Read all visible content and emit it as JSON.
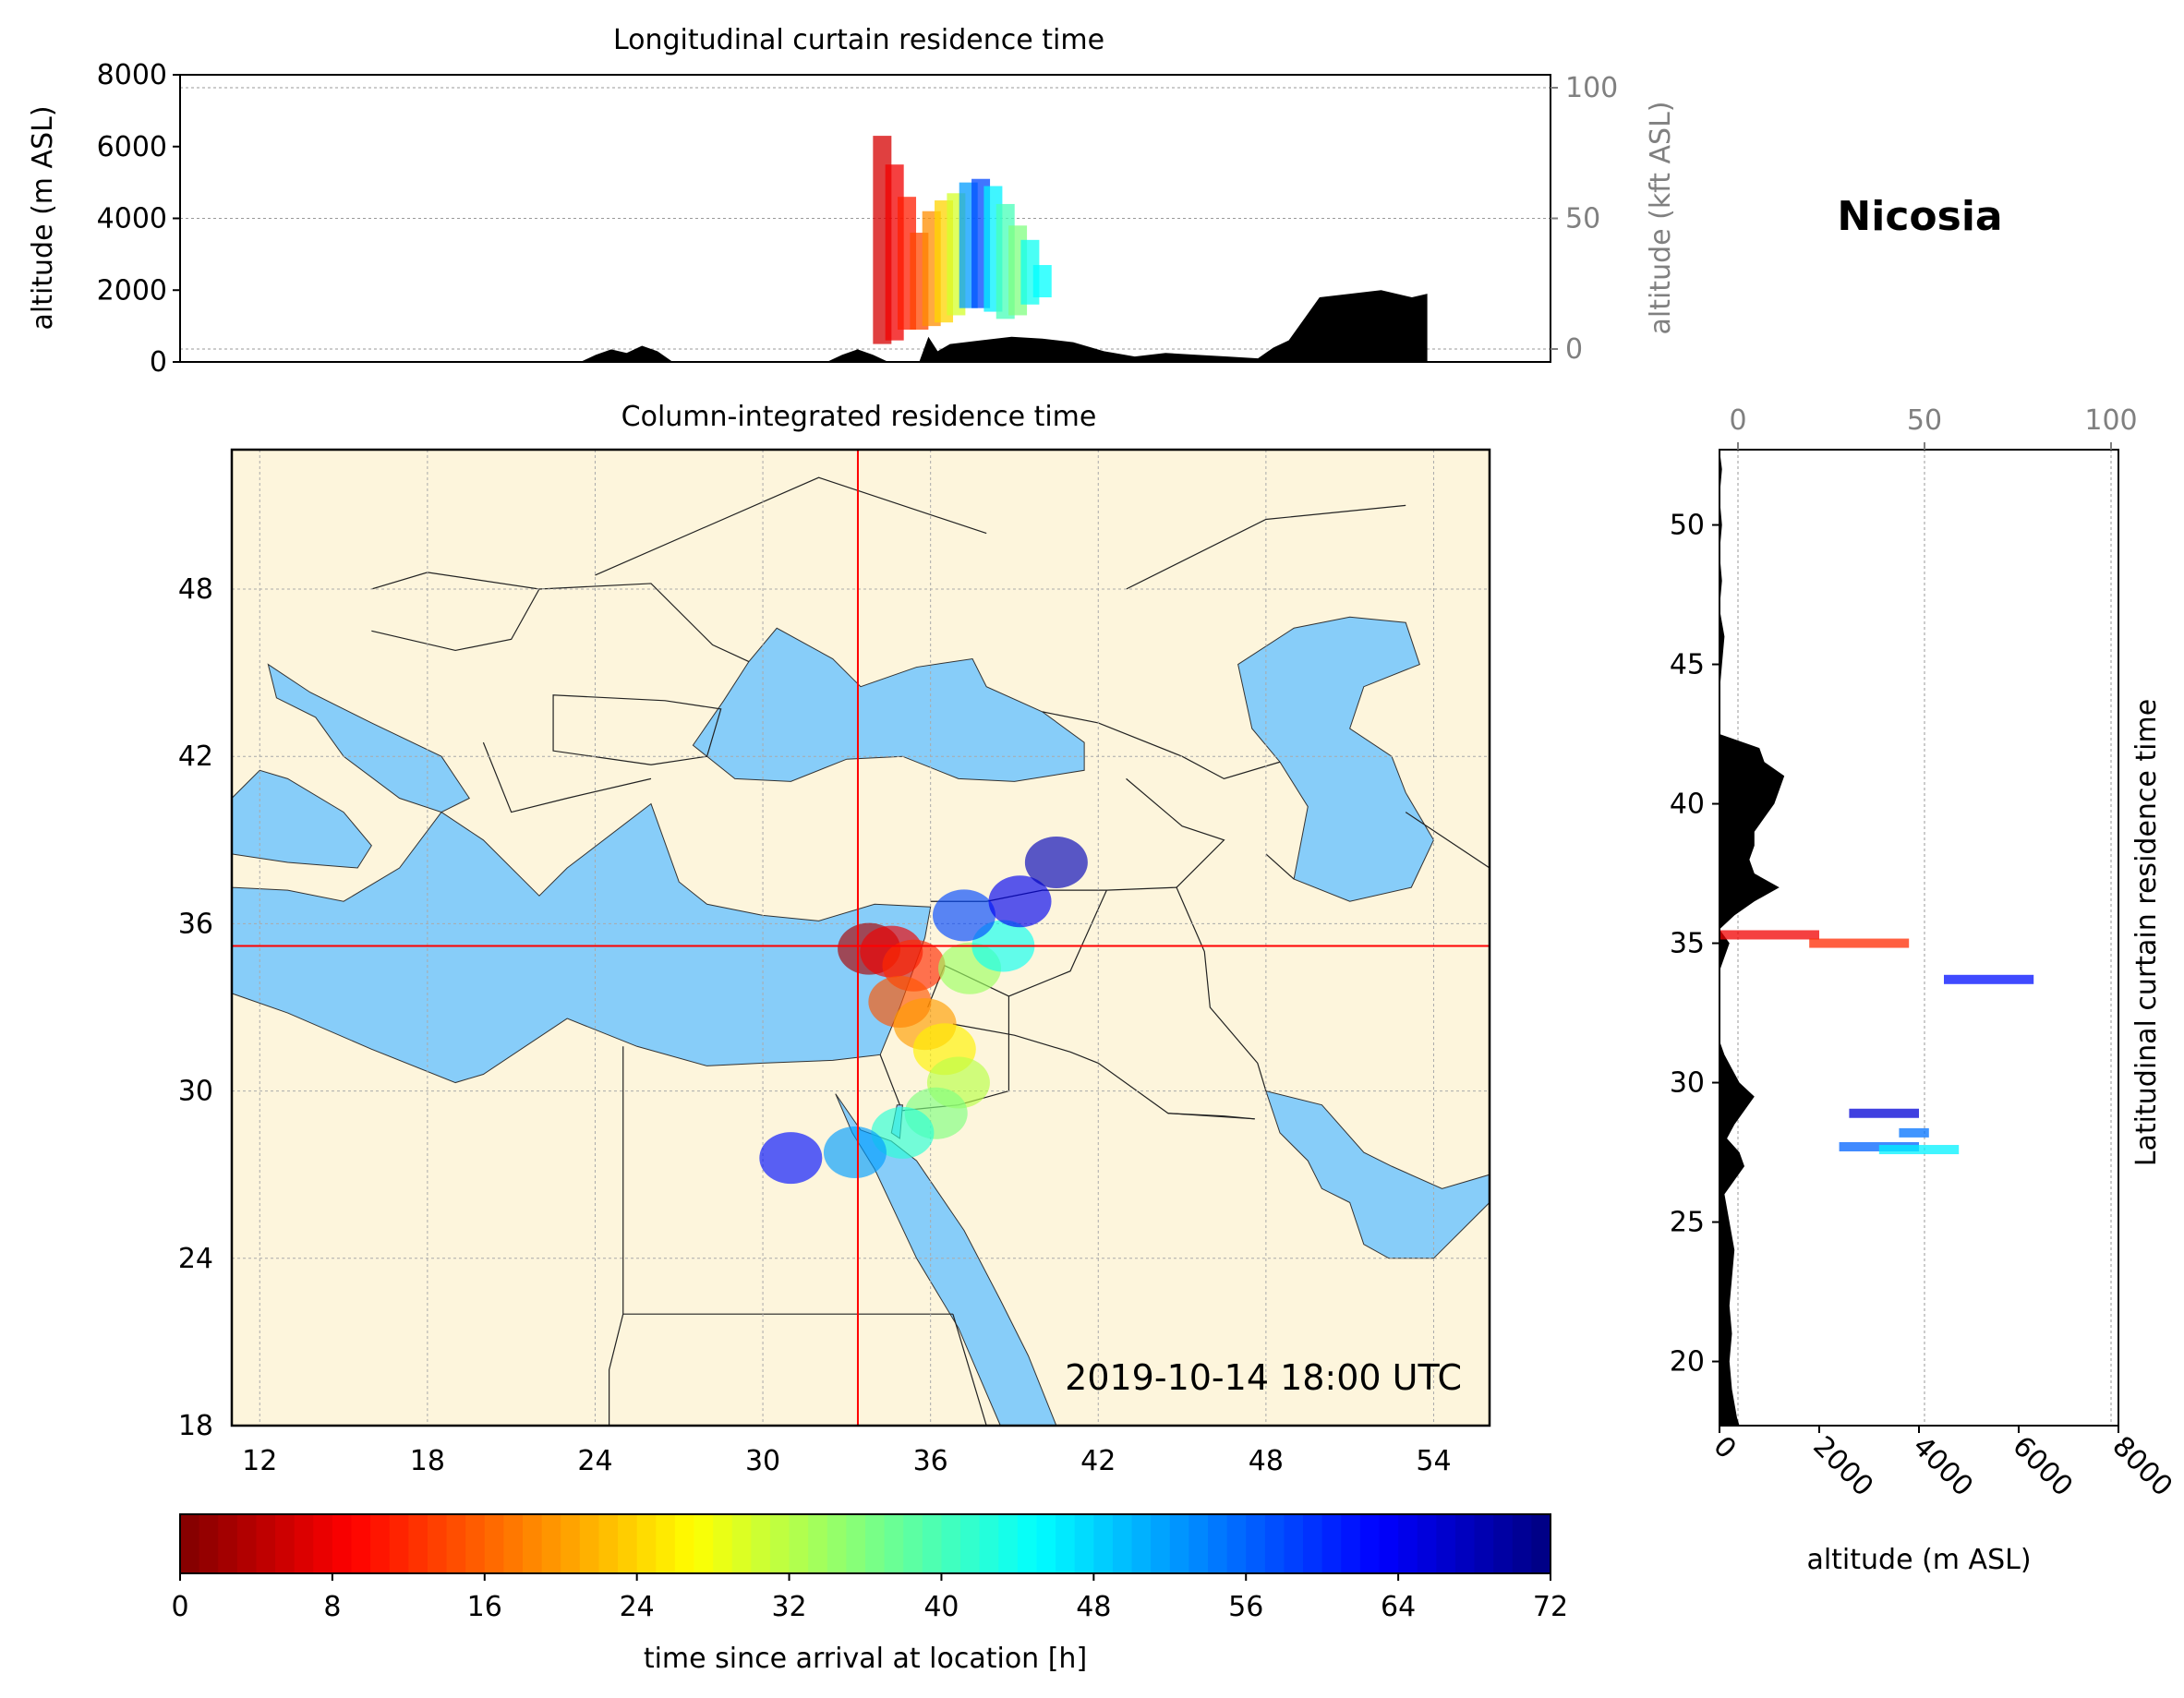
{
  "station": "Nicosia",
  "timestamp": "2019-10-14 18:00 UTC",
  "colors": {
    "land": "#fdf5dc",
    "sea": "#87cdf9",
    "terrain": "#000000",
    "crosshair": "#ff0000"
  },
  "chart_data": [
    {
      "id": "top",
      "type": "area",
      "title": "Longitudinal curtain residence time",
      "xlim": [
        11,
        55.5
      ],
      "ylabel": "altitude (m ASL)",
      "ylim": [
        0,
        8000
      ],
      "yticks": [
        "0",
        "2000",
        "4000",
        "6000",
        "8000"
      ],
      "ylabel_right": "altitude (kft ASL)",
      "ylim_right_kft": [
        0,
        100
      ],
      "yticks_right": [
        "0",
        "50",
        "100"
      ],
      "grid": true,
      "terrain": {
        "x": [
          11,
          24.0,
          24.5,
          25,
          25.5,
          26,
          26.5,
          27,
          32,
          32.5,
          33,
          33.5,
          34,
          35,
          35.3,
          35.6,
          36,
          37,
          38,
          39,
          40,
          41,
          42,
          43,
          44,
          45,
          46,
          46.5,
          47,
          47.5,
          48,
          49,
          50,
          51,
          51.5
        ],
        "y": [
          0,
          0,
          200,
          350,
          250,
          450,
          300,
          0,
          0,
          200,
          350,
          200,
          0,
          0,
          700,
          300,
          500,
          600,
          700,
          650,
          550,
          300,
          150,
          250,
          200,
          150,
          100,
          400,
          600,
          1200,
          1800,
          1900,
          2000,
          1800,
          1900
        ]
      },
      "residence": [
        {
          "lon": 33.8,
          "alt": [
            500,
            6300
          ],
          "hours": 6
        },
        {
          "lon": 34.2,
          "alt": [
            600,
            5500
          ],
          "hours": 8
        },
        {
          "lon": 34.6,
          "alt": [
            900,
            4600
          ],
          "hours": 11
        },
        {
          "lon": 35.0,
          "alt": [
            900,
            3600
          ],
          "hours": 14
        },
        {
          "lon": 35.4,
          "alt": [
            1000,
            4200
          ],
          "hours": 19
        },
        {
          "lon": 35.8,
          "alt": [
            1100,
            4500
          ],
          "hours": 24
        },
        {
          "lon": 36.2,
          "alt": [
            1300,
            4700
          ],
          "hours": 30
        },
        {
          "lon": 36.6,
          "alt": [
            1500,
            5000
          ],
          "hours": 52
        },
        {
          "lon": 37.0,
          "alt": [
            1500,
            5100
          ],
          "hours": 58
        },
        {
          "lon": 37.4,
          "alt": [
            1400,
            4900
          ],
          "hours": 46
        },
        {
          "lon": 37.8,
          "alt": [
            1200,
            4400
          ],
          "hours": 40
        },
        {
          "lon": 38.2,
          "alt": [
            1300,
            3800
          ],
          "hours": 36
        },
        {
          "lon": 38.6,
          "alt": [
            1600,
            3400
          ],
          "hours": 44
        },
        {
          "lon": 39.0,
          "alt": [
            1800,
            2700
          ],
          "hours": 45
        }
      ]
    },
    {
      "id": "map",
      "type": "heatmap",
      "title": "Column-integrated residence time",
      "xlim": [
        11,
        56
      ],
      "ylim": [
        18,
        53
      ],
      "xticks": [
        "12",
        "18",
        "24",
        "30",
        "36",
        "42",
        "48",
        "54"
      ],
      "yticks": [
        "18",
        "24",
        "30",
        "36",
        "42",
        "48"
      ],
      "station_lon": 33.4,
      "station_lat": 35.2,
      "grid": true,
      "plume": [
        {
          "lon": 33.8,
          "lat": 35.1,
          "hours": 3
        },
        {
          "lon": 34.6,
          "lat": 35.0,
          "hours": 8
        },
        {
          "lon": 35.4,
          "lat": 34.5,
          "hours": 12
        },
        {
          "lon": 34.9,
          "lat": 33.2,
          "hours": 15
        },
        {
          "lon": 35.8,
          "lat": 32.4,
          "hours": 20
        },
        {
          "lon": 36.5,
          "lat": 31.5,
          "hours": 26
        },
        {
          "lon": 37.0,
          "lat": 30.3,
          "hours": 32
        },
        {
          "lon": 36.2,
          "lat": 29.2,
          "hours": 36
        },
        {
          "lon": 35.0,
          "lat": 28.5,
          "hours": 42
        },
        {
          "lon": 33.3,
          "lat": 27.8,
          "hours": 52
        },
        {
          "lon": 31.0,
          "lat": 27.6,
          "hours": 62
        },
        {
          "lon": 37.4,
          "lat": 34.4,
          "hours": 34
        },
        {
          "lon": 38.6,
          "lat": 35.2,
          "hours": 44
        },
        {
          "lon": 37.2,
          "lat": 36.3,
          "hours": 58
        },
        {
          "lon": 39.2,
          "lat": 36.8,
          "hours": 64
        },
        {
          "lon": 40.5,
          "lat": 38.2,
          "hours": 68
        }
      ]
    },
    {
      "id": "right",
      "type": "area",
      "ylabel_side": "Latitudinal curtain residence time",
      "xlabel": "altitude (m ASL)",
      "xlim": [
        0,
        8000
      ],
      "xticks": [
        "0",
        "2000",
        "4000",
        "6000",
        "8000"
      ],
      "xlim_top_kft": [
        0,
        100
      ],
      "xticks_top": [
        "0",
        "50",
        "100"
      ],
      "ylim": [
        17.7,
        52.7
      ],
      "yticks": [
        "20",
        "25",
        "30",
        "35",
        "40",
        "45",
        "50"
      ],
      "grid": true,
      "terrain": {
        "lat": [
          17.7,
          18,
          19,
          20,
          21,
          22,
          23,
          24,
          25,
          26,
          26.5,
          27,
          27.5,
          28,
          28.5,
          29,
          29.5,
          30,
          30.5,
          31,
          31.5,
          32,
          33,
          34,
          35,
          35.5,
          36,
          36.5,
          37,
          37.5,
          38,
          38.5,
          39,
          39.5,
          40,
          40.5,
          41,
          41.5,
          42,
          42.5,
          43,
          44,
          45,
          46,
          47,
          48,
          49,
          50,
          51,
          52,
          52.7
        ],
        "alt": [
          400,
          350,
          250,
          200,
          250,
          200,
          250,
          300,
          200,
          100,
          300,
          500,
          400,
          150,
          300,
          500,
          700,
          400,
          250,
          100,
          0,
          0,
          0,
          0,
          200,
          0,
          300,
          700,
          1200,
          700,
          600,
          700,
          700,
          900,
          1100,
          1200,
          1300,
          900,
          800,
          0,
          0,
          0,
          50,
          100,
          0,
          50,
          0,
          50,
          0,
          50,
          0
        ]
      },
      "residence": [
        {
          "lat": 35.3,
          "alt": [
            0,
            2000
          ],
          "hours": 8
        },
        {
          "lat": 35.0,
          "alt": [
            1800,
            3800
          ],
          "hours": 12
        },
        {
          "lat": 33.7,
          "alt": [
            4500,
            6300
          ],
          "hours": 62
        },
        {
          "lat": 28.9,
          "alt": [
            2600,
            4000
          ],
          "hours": 66
        },
        {
          "lat": 28.2,
          "alt": [
            3600,
            4200
          ],
          "hours": 55
        },
        {
          "lat": 27.7,
          "alt": [
            2400,
            4000
          ],
          "hours": 56
        },
        {
          "lat": 27.6,
          "alt": [
            3200,
            4800
          ],
          "hours": 46
        }
      ]
    },
    {
      "id": "colorbar",
      "type": "heatmap",
      "xlabel": "time since arrival at location [h]",
      "xlim": [
        0,
        72
      ],
      "xticks": [
        "0",
        "8",
        "16",
        "24",
        "32",
        "40",
        "48",
        "56",
        "64",
        "72"
      ],
      "colormap": "jet_r"
    }
  ]
}
